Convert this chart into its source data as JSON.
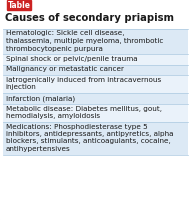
{
  "title": "Causes of secondary priapism",
  "table_label": "Table",
  "rows": [
    "Hematologic: Sickle cell disease,\nthalassemia, multiple myeloma, thrombotic\nthrombocytopenic purpura",
    "Spinal shock or pelvic/penile trauma",
    "Malignancy or metastatic cancer",
    "Iatrogenically induced from intracavernous\ninjection",
    "Infarction (malaria)",
    "Metabolic disease: Diabetes mellitus, gout,\nhemodialysis, amyloidosis",
    "Medications: Phosphodiesterase type 5\ninhibitors, antidepressants, antipyretics, alpha\nblockers, stimulants, anticoagulants, cocaine,\nantihypertensives"
  ],
  "row_bg_colors": [
    "#dce9f5",
    "#eaf2fa"
  ],
  "title_color": "#1a1a1a",
  "text_color": "#1a1a1a",
  "border_color": "#999999",
  "tag_bg": "#cc2222",
  "tag_text": "#ffffff",
  "title_fontsize": 7.2,
  "row_fontsize": 5.2,
  "tag_fontsize": 5.5,
  "background_color": "#ffffff",
  "fig_w": 1.91,
  "fig_h": 2.2,
  "dpi": 100
}
